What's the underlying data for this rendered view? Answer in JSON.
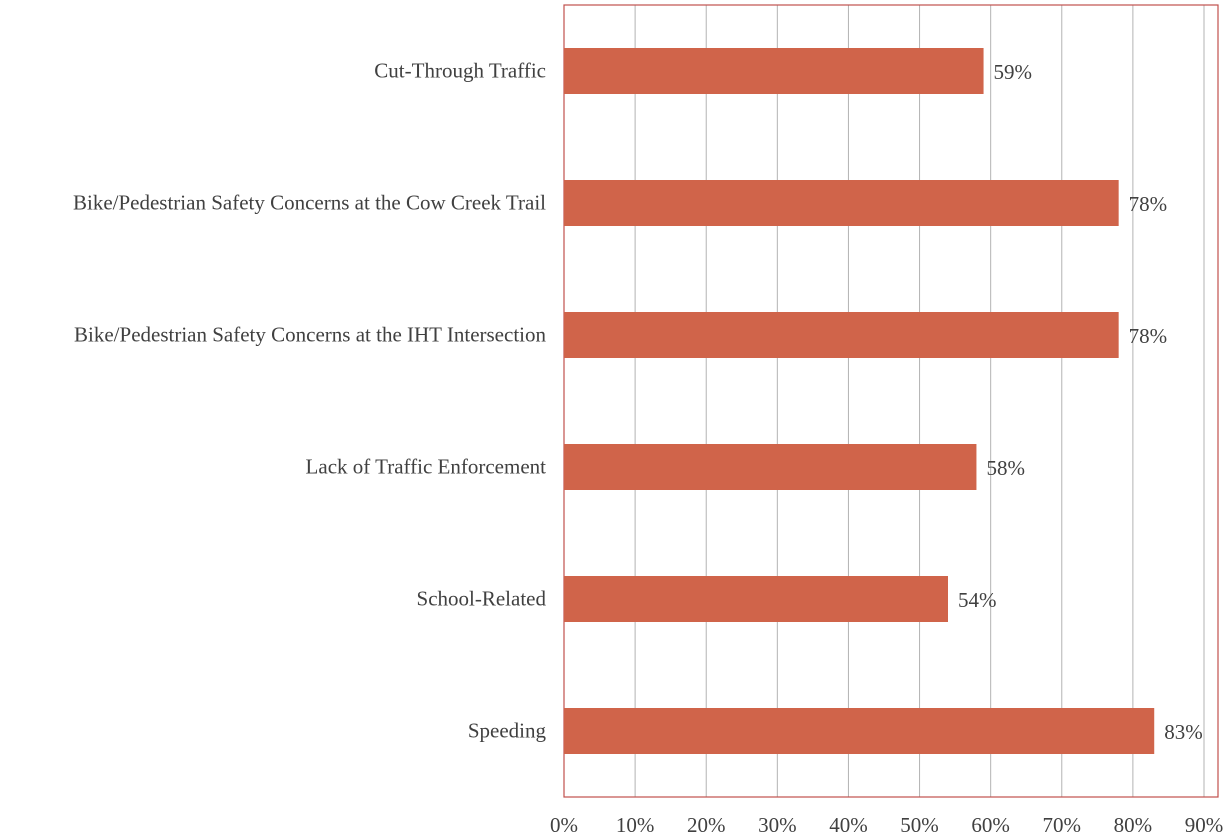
{
  "chart_data": {
    "type": "bar",
    "orientation": "horizontal",
    "categories": [
      "Cut-Through Traffic",
      "Bike/Pedestrian Safety Concerns at the Cow Creek Trail",
      "Bike/Pedestrian Safety Concerns at the IHT Intersection",
      "Lack of Traffic Enforcement",
      "School-Related",
      "Speeding"
    ],
    "values": [
      59,
      78,
      78,
      58,
      54,
      83
    ],
    "value_labels": [
      "59%",
      "78%",
      "78%",
      "58%",
      "54%",
      "83%"
    ],
    "color": "#d0644a",
    "xlim": [
      0,
      90
    ],
    "xticks": [
      {
        "value": 0,
        "label": "0%"
      },
      {
        "value": 10,
        "label": "10%"
      },
      {
        "value": 20,
        "label": "20%"
      },
      {
        "value": 30,
        "label": "30%"
      },
      {
        "value": 40,
        "label": "40%"
      },
      {
        "value": 50,
        "label": "50%"
      },
      {
        "value": 60,
        "label": "60%"
      },
      {
        "value": 70,
        "label": "70%"
      },
      {
        "value": 80,
        "label": "80%"
      },
      {
        "value": 90,
        "label": "90%"
      }
    ],
    "grid": true
  }
}
